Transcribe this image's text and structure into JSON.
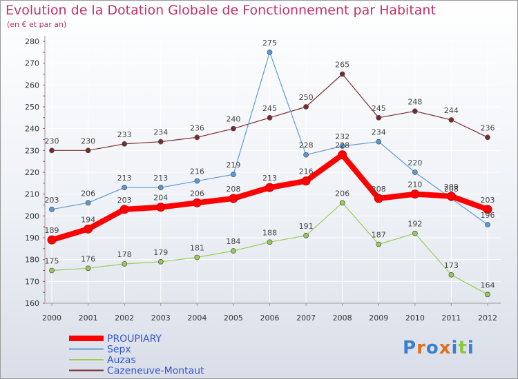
{
  "chart_data": {
    "type": "line",
    "title": "Evolution de la Dotation Globale de Fonctionnement par Habitant",
    "subtitle": "(en € et par an)",
    "x": [
      "2000",
      "2001",
      "2002",
      "2003",
      "2004",
      "2005",
      "2006",
      "2007",
      "2008",
      "2009",
      "2010",
      "2011",
      "2012"
    ],
    "yticks": [
      160,
      170,
      180,
      190,
      200,
      210,
      220,
      230,
      240,
      250,
      260,
      270,
      280
    ],
    "ylim": [
      160,
      280
    ],
    "series": [
      {
        "name": "PROUPIARY",
        "color": "#ff0000",
        "values": [
          189,
          194,
          203,
          204,
          206,
          208,
          213,
          216,
          228,
          208,
          210,
          209,
          203
        ]
      },
      {
        "name": "Sepx",
        "color": "#5b9bd5",
        "values": [
          203,
          206,
          213,
          213,
          216,
          219,
          275,
          228,
          232,
          234,
          220,
          208,
          196
        ]
      },
      {
        "name": "Auzas",
        "color": "#99cc55",
        "values": [
          175,
          176,
          178,
          179,
          181,
          184,
          188,
          191,
          206,
          187,
          192,
          173,
          164
        ]
      },
      {
        "name": "Cazeneuve-Montaut",
        "color": "#7a2a2a",
        "values": [
          230,
          230,
          233,
          234,
          236,
          240,
          245,
          250,
          265,
          245,
          248,
          244,
          236
        ]
      }
    ],
    "legend": [
      "PROUPIARY",
      "Sepx",
      "Auzas",
      "Cazeneuve-Montaut"
    ],
    "grid": true
  },
  "logo": {
    "text": "Proxiti"
  }
}
